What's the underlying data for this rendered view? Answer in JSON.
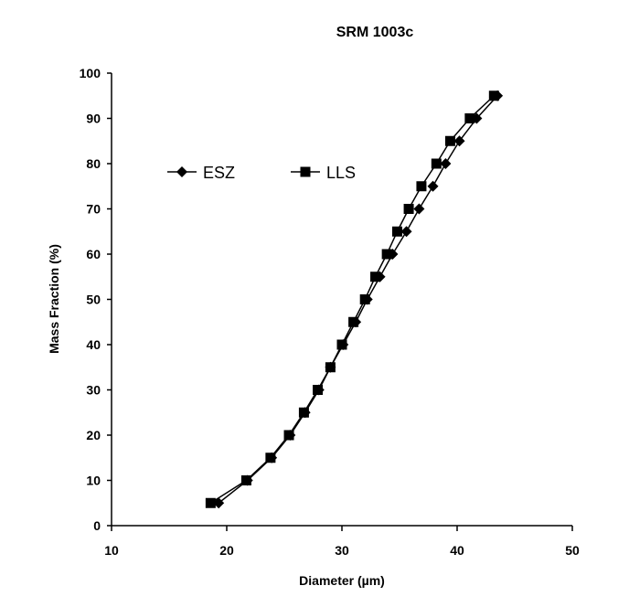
{
  "chart_data": {
    "type": "line",
    "title": "SRM 1003c",
    "xlabel": "Diameter (µm)",
    "ylabel": "Mass Fraction (%)",
    "xlim": [
      10,
      50
    ],
    "ylim": [
      0,
      100
    ],
    "xticks": [
      10,
      20,
      30,
      40,
      50
    ],
    "yticks": [
      0,
      10,
      20,
      30,
      40,
      50,
      60,
      70,
      80,
      90,
      100
    ],
    "grid": false,
    "legend_placement": "top-left",
    "series": [
      {
        "name": "ESZ",
        "marker": "diamond",
        "color": "#000000",
        "x": [
          19.3,
          21.8,
          23.9,
          25.5,
          26.8,
          28.0,
          29.0,
          30.1,
          31.2,
          32.2,
          33.3,
          34.4,
          35.6,
          36.7,
          37.9,
          39.0,
          40.2,
          41.7,
          43.5
        ],
        "y": [
          5,
          10,
          15,
          20,
          25,
          30,
          35,
          40,
          45,
          50,
          55,
          60,
          65,
          70,
          75,
          80,
          85,
          90,
          95
        ]
      },
      {
        "name": "LLS",
        "marker": "square",
        "color": "#000000",
        "x": [
          18.6,
          21.7,
          23.8,
          25.4,
          26.7,
          27.9,
          29.0,
          30.0,
          31.0,
          32.0,
          32.9,
          33.9,
          34.8,
          35.8,
          36.9,
          38.2,
          39.4,
          41.1,
          43.2
        ],
        "y": [
          5,
          10,
          15,
          20,
          25,
          30,
          35,
          40,
          45,
          50,
          55,
          60,
          65,
          70,
          75,
          80,
          85,
          90,
          95
        ]
      }
    ]
  }
}
